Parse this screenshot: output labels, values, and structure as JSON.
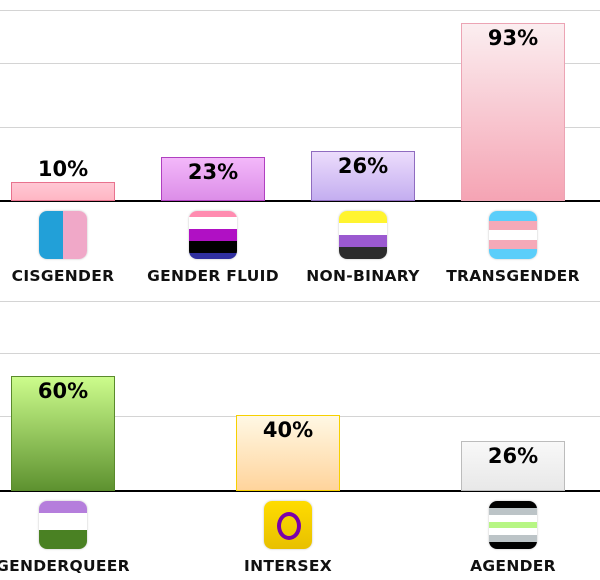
{
  "chart_data": [
    {
      "type": "bar",
      "categories": [
        "CISGENDER",
        "GENDER FLUID",
        "NON-BINARY",
        "TRANSGENDER"
      ],
      "values": [
        10,
        23,
        26,
        93
      ],
      "value_labels": [
        "10%",
        "23%",
        "26%",
        "93%"
      ],
      "ylim": [
        0,
        100
      ],
      "grid": true,
      "icons": [
        "cisgender-flag-icon",
        "genderfluid-flag-icon",
        "nonbinary-flag-icon",
        "transgender-flag-icon"
      ],
      "bar_colors": [
        [
          "#ffc8d4",
          "#ffb6c4",
          "#e8728e"
        ],
        [
          "#f3b8fa",
          "#dc8ee8",
          "#b040c0"
        ],
        [
          "#ecdcfc",
          "#c4aef0",
          "#8f6cc0"
        ],
        [
          "#fbeef0",
          "#f5a4b4",
          "#eca4b4"
        ]
      ]
    },
    {
      "type": "bar",
      "categories": [
        "GENDERQUEER",
        "INTERSEX",
        "AGENDER"
      ],
      "values": [
        60,
        40,
        26
      ],
      "value_labels": [
        "60%",
        "40%",
        "26%"
      ],
      "ylim": [
        0,
        100
      ],
      "grid": true,
      "icons": [
        "genderqueer-flag-icon",
        "intersex-flag-icon",
        "agender-flag-icon"
      ],
      "bar_colors": [
        [
          "#ccfc8c",
          "#5e9230",
          "#5a8a2c"
        ],
        [
          "#fff8e4",
          "#ffd49c",
          "#f6d000"
        ],
        [
          "#f8f8f8",
          "#e8e8e8",
          "#bcbcbc"
        ]
      ]
    }
  ]
}
